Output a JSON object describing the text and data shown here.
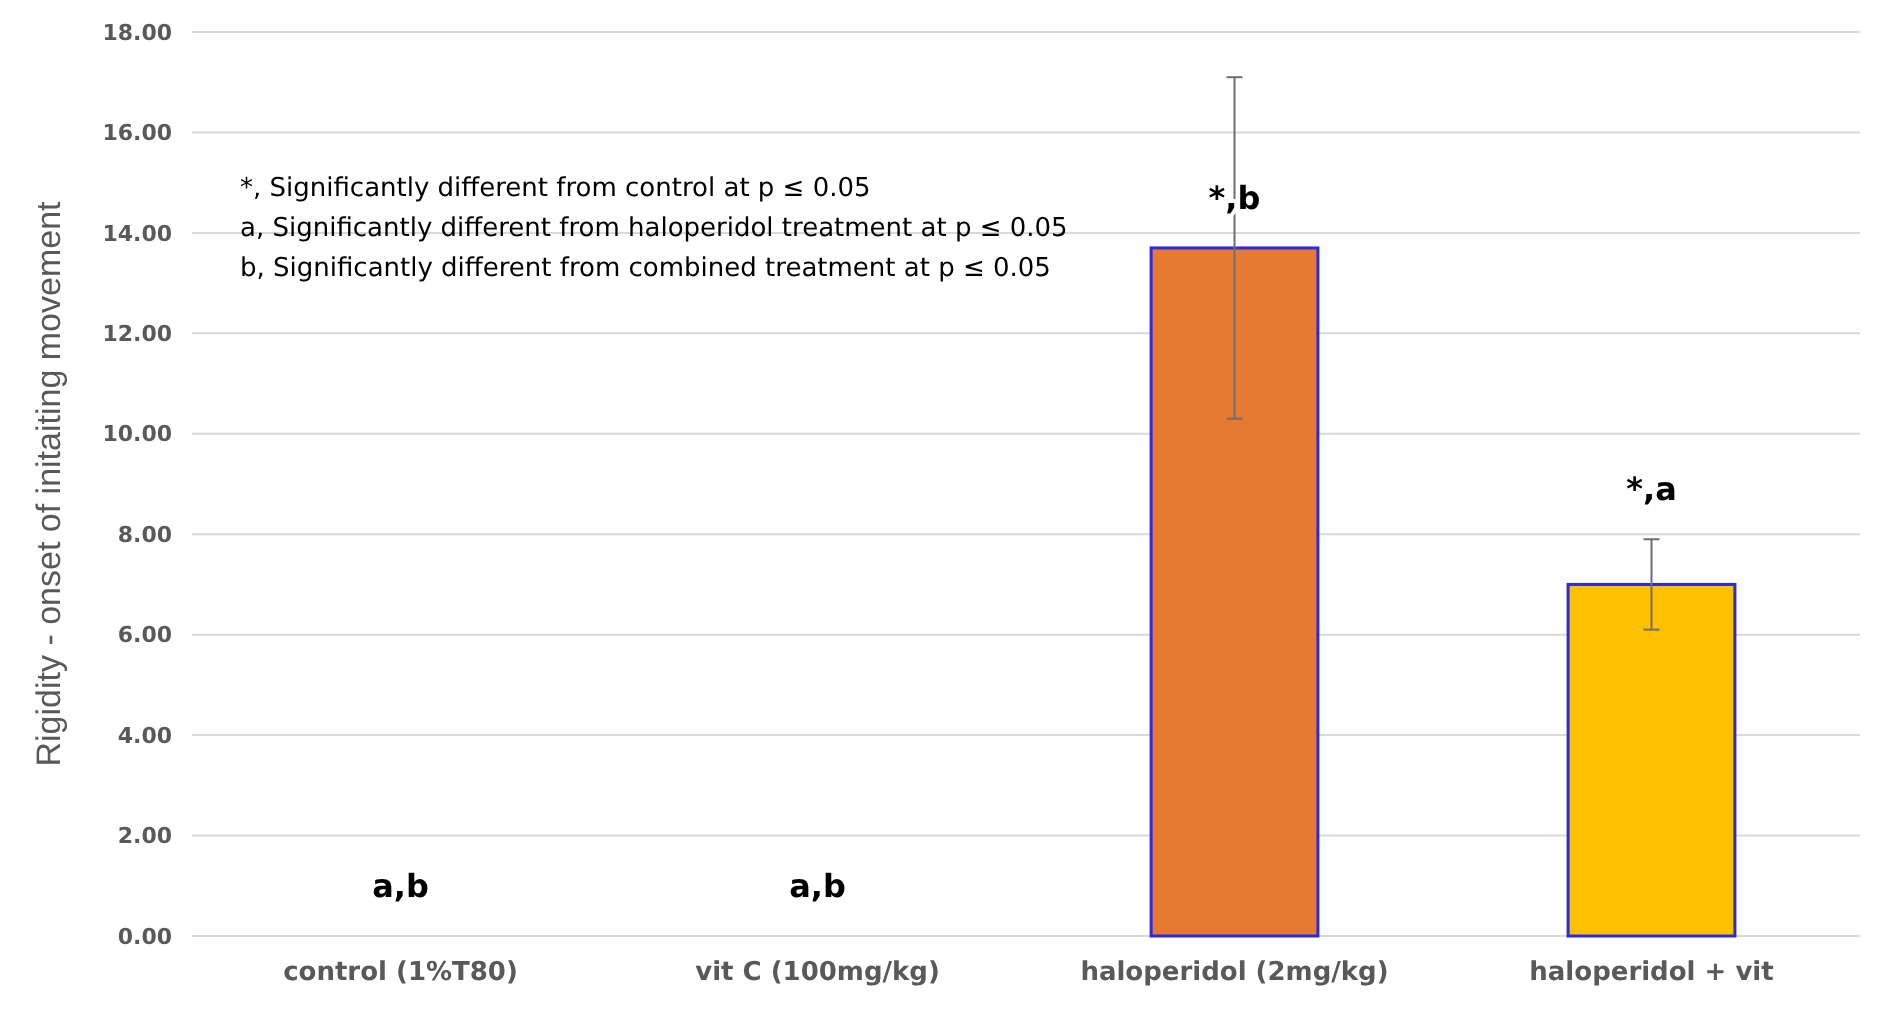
{
  "chart_data": {
    "type": "bar",
    "ylabel": "Rigidity - onset of initaiting movement",
    "categories": [
      "control (1%T80)",
      "vit C (100mg/kg)",
      "haloperidol (2mg/kg)",
      "haloperidol + vit"
    ],
    "values": [
      0,
      0,
      13.7,
      7.0
    ],
    "colors": [
      "#7f7f7f",
      "#7f7f7f",
      "#e67a32",
      "#ffc000"
    ],
    "errors": [
      null,
      null,
      3.4,
      0.9
    ],
    "ylim": [
      0,
      18
    ],
    "yticks": [
      {
        "value": 0,
        "label": "0.00"
      },
      {
        "value": 2,
        "label": "2.00"
      },
      {
        "value": 4,
        "label": "4.00"
      },
      {
        "value": 6,
        "label": "6.00"
      },
      {
        "value": 8,
        "label": "8.00"
      },
      {
        "value": 10,
        "label": "10.00"
      },
      {
        "value": 12,
        "label": "12.00"
      },
      {
        "value": 14,
        "label": "14.00"
      },
      {
        "value": 16,
        "label": "16.00"
      },
      {
        "value": 18,
        "label": "18.00"
      }
    ],
    "grid": "y",
    "annotations": [
      "*, Significantly different from control at p ≤ 0.05",
      "a, Significantly different from haloperidol treatment at p ≤ 0.05",
      "b, Significantly different from combined treatment at p ≤ 0.05",
      {
        "text": "a,b",
        "x": "control (1%T80)",
        "y": 0
      },
      {
        "text": "a,b",
        "x": "vit C (100mg/kg)",
        "y": 0
      },
      {
        "text": "*,b",
        "x": "haloperidol (2mg/kg)",
        "y": 13.7
      },
      {
        "text": "*,a",
        "x": "haloperidol + vit",
        "y": 7.9
      }
    ]
  }
}
